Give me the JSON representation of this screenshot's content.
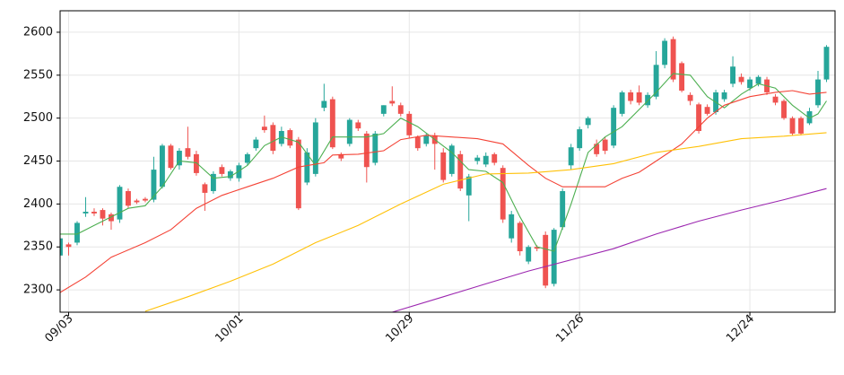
{
  "chart_data": {
    "type": "candlestick",
    "categories": [
      null,
      "09/03",
      null,
      null,
      null,
      null,
      null,
      null,
      null,
      null,
      null,
      null,
      null,
      null,
      null,
      null,
      null,
      null,
      null,
      null,
      null,
      "10/01",
      null,
      null,
      null,
      null,
      null,
      null,
      null,
      null,
      null,
      null,
      null,
      null,
      null,
      null,
      null,
      null,
      null,
      null,
      null,
      "10/29",
      null,
      null,
      null,
      null,
      null,
      null,
      null,
      null,
      null,
      null,
      null,
      null,
      null,
      null,
      null,
      null,
      null,
      null,
      null,
      "11/26",
      null,
      null,
      null,
      null,
      null,
      null,
      null,
      null,
      null,
      null,
      null,
      null,
      null,
      null,
      null,
      null,
      null,
      null,
      null,
      "12/24",
      null,
      null,
      null,
      null,
      null,
      null,
      null,
      null,
      null
    ],
    "open": [
      2340,
      2353,
      2355,
      2389,
      2391,
      2393,
      2388,
      2382,
      2415,
      2404,
      2406,
      2405,
      2420,
      2468,
      2445,
      2465,
      2458,
      2423,
      2415,
      2443,
      2430,
      2430,
      2448,
      2465,
      2490,
      2492,
      2470,
      2486,
      2475,
      2425,
      2435,
      2512,
      2522,
      2458,
      2470,
      2495,
      2482,
      2448,
      2505,
      2520,
      2515,
      2505,
      2478,
      2470,
      2480,
      2460,
      2435,
      2458,
      2410,
      2450,
      2446,
      2458,
      2442,
      2360,
      2378,
      2333,
      2350,
      2364,
      2307,
      2373,
      2445,
      2465,
      2492,
      2470,
      2475,
      2468,
      2505,
      2530,
      2530,
      2515,
      2525,
      2562,
      2592,
      2564,
      2527,
      2516,
      2513,
      2507,
      2522,
      2540,
      2548,
      2535,
      2540,
      2545,
      2525,
      2520,
      2500,
      2500,
      2494,
      2515,
      2545
    ],
    "high": [
      2365,
      2355,
      2380,
      2408,
      2395,
      2395,
      2390,
      2422,
      2418,
      2406,
      2408,
      2455,
      2470,
      2470,
      2465,
      2490,
      2462,
      2425,
      2438,
      2446,
      2440,
      2448,
      2460,
      2478,
      2503,
      2495,
      2490,
      2488,
      2478,
      2465,
      2500,
      2540,
      2525,
      2460,
      2500,
      2498,
      2485,
      2485,
      2515,
      2537,
      2518,
      2508,
      2480,
      2482,
      2483,
      2465,
      2470,
      2462,
      2435,
      2457,
      2460,
      2460,
      2445,
      2392,
      2380,
      2352,
      2352,
      2368,
      2372,
      2418,
      2470,
      2490,
      2502,
      2475,
      2478,
      2515,
      2532,
      2533,
      2538,
      2530,
      2578,
      2593,
      2595,
      2566,
      2530,
      2518,
      2516,
      2533,
      2533,
      2572,
      2552,
      2548,
      2550,
      2548,
      2528,
      2522,
      2502,
      2502,
      2512,
      2555,
      2585
    ],
    "low": [
      2335,
      2340,
      2352,
      2385,
      2386,
      2375,
      2370,
      2378,
      2395,
      2400,
      2402,
      2402,
      2418,
      2440,
      2440,
      2452,
      2433,
      2392,
      2412,
      2432,
      2427,
      2426,
      2445,
      2462,
      2483,
      2458,
      2467,
      2465,
      2393,
      2422,
      2432,
      2508,
      2464,
      2450,
      2467,
      2485,
      2425,
      2445,
      2502,
      2514,
      2502,
      2477,
      2462,
      2467,
      2440,
      2425,
      2432,
      2415,
      2380,
      2446,
      2443,
      2445,
      2378,
      2355,
      2340,
      2330,
      2345,
      2302,
      2304,
      2370,
      2440,
      2462,
      2488,
      2455,
      2458,
      2465,
      2502,
      2516,
      2515,
      2512,
      2522,
      2558,
      2542,
      2530,
      2515,
      2482,
      2503,
      2504,
      2519,
      2536,
      2539,
      2532,
      2537,
      2527,
      2515,
      2498,
      2480,
      2480,
      2492,
      2512,
      2542
    ],
    "close": [
      2360,
      2350,
      2378,
      2391,
      2389,
      2383,
      2380,
      2420,
      2398,
      2402,
      2404,
      2440,
      2468,
      2442,
      2462,
      2455,
      2436,
      2413,
      2435,
      2435,
      2438,
      2445,
      2458,
      2475,
      2486,
      2462,
      2485,
      2468,
      2395,
      2460,
      2495,
      2520,
      2466,
      2453,
      2498,
      2488,
      2443,
      2482,
      2515,
      2517,
      2505,
      2480,
      2465,
      2480,
      2470,
      2428,
      2468,
      2418,
      2432,
      2454,
      2456,
      2448,
      2382,
      2388,
      2345,
      2350,
      2348,
      2305,
      2370,
      2415,
      2466,
      2487,
      2500,
      2458,
      2462,
      2512,
      2530,
      2520,
      2518,
      2527,
      2562,
      2590,
      2545,
      2532,
      2520,
      2485,
      2505,
      2530,
      2530,
      2560,
      2542,
      2545,
      2548,
      2530,
      2518,
      2500,
      2482,
      2482,
      2508,
      2545,
      2583
    ],
    "up_color": "#26a69a",
    "down_color": "#ef5350",
    "series": [
      {
        "color": "#4caf50",
        "x": [
          0,
          2,
          4,
          6,
          8,
          10,
          12,
          14,
          16,
          18,
          20,
          22,
          24,
          26,
          28,
          30,
          32,
          34,
          36,
          38,
          40,
          42,
          44,
          46,
          48,
          50,
          52,
          54,
          56,
          58,
          60,
          62,
          64,
          66,
          68,
          70,
          72,
          74,
          76,
          78,
          80,
          82,
          84,
          86,
          88,
          89,
          90
        ],
        "values": [
          2365,
          2365,
          2375,
          2385,
          2395,
          2398,
          2420,
          2450,
          2448,
          2430,
          2432,
          2445,
          2468,
          2478,
          2472,
          2445,
          2478,
          2478,
          2478,
          2482,
          2500,
          2490,
          2475,
          2460,
          2440,
          2438,
          2425,
          2385,
          2350,
          2345,
          2400,
          2460,
          2478,
          2490,
          2510,
          2530,
          2552,
          2550,
          2525,
          2512,
          2528,
          2540,
          2535,
          2515,
          2500,
          2505,
          2520
        ]
      },
      {
        "color": "#f44336",
        "x": [
          0,
          3,
          6,
          10,
          13,
          16,
          19,
          22,
          25,
          28,
          31,
          32,
          35,
          38,
          40,
          43,
          46,
          49,
          52,
          55,
          57,
          59,
          62,
          64,
          66,
          68,
          70,
          73,
          76,
          78,
          81,
          84,
          86,
          88,
          90
        ],
        "values": [
          2297,
          2315,
          2338,
          2355,
          2370,
          2395,
          2410,
          2420,
          2430,
          2443,
          2448,
          2457,
          2458,
          2462,
          2475,
          2480,
          2478,
          2476,
          2470,
          2445,
          2430,
          2420,
          2420,
          2420,
          2430,
          2437,
          2450,
          2470,
          2500,
          2515,
          2525,
          2530,
          2532,
          2528,
          2530
        ]
      },
      {
        "color": "#ffc107",
        "x": [
          10,
          15,
          20,
          25,
          30,
          35,
          40,
          45,
          50,
          55,
          60,
          65,
          70,
          75,
          80,
          85,
          90
        ],
        "values": [
          2275,
          2292,
          2310,
          2330,
          2355,
          2375,
          2400,
          2423,
          2435,
          2436,
          2440,
          2447,
          2460,
          2467,
          2476,
          2479,
          2483
        ]
      },
      {
        "color": "#9c27b0",
        "x": [
          39,
          45,
          50,
          55,
          60,
          65,
          70,
          75,
          80,
          85,
          90
        ],
        "values": [
          2274,
          2292,
          2307,
          2322,
          2335,
          2348,
          2365,
          2380,
          2393,
          2405,
          2418
        ]
      }
    ],
    "xlim": [
      0,
      91
    ],
    "ylim": [
      2274,
      2625
    ],
    "yticks": [
      2300,
      2350,
      2400,
      2450,
      2500,
      2550,
      2600
    ],
    "grid": true
  }
}
